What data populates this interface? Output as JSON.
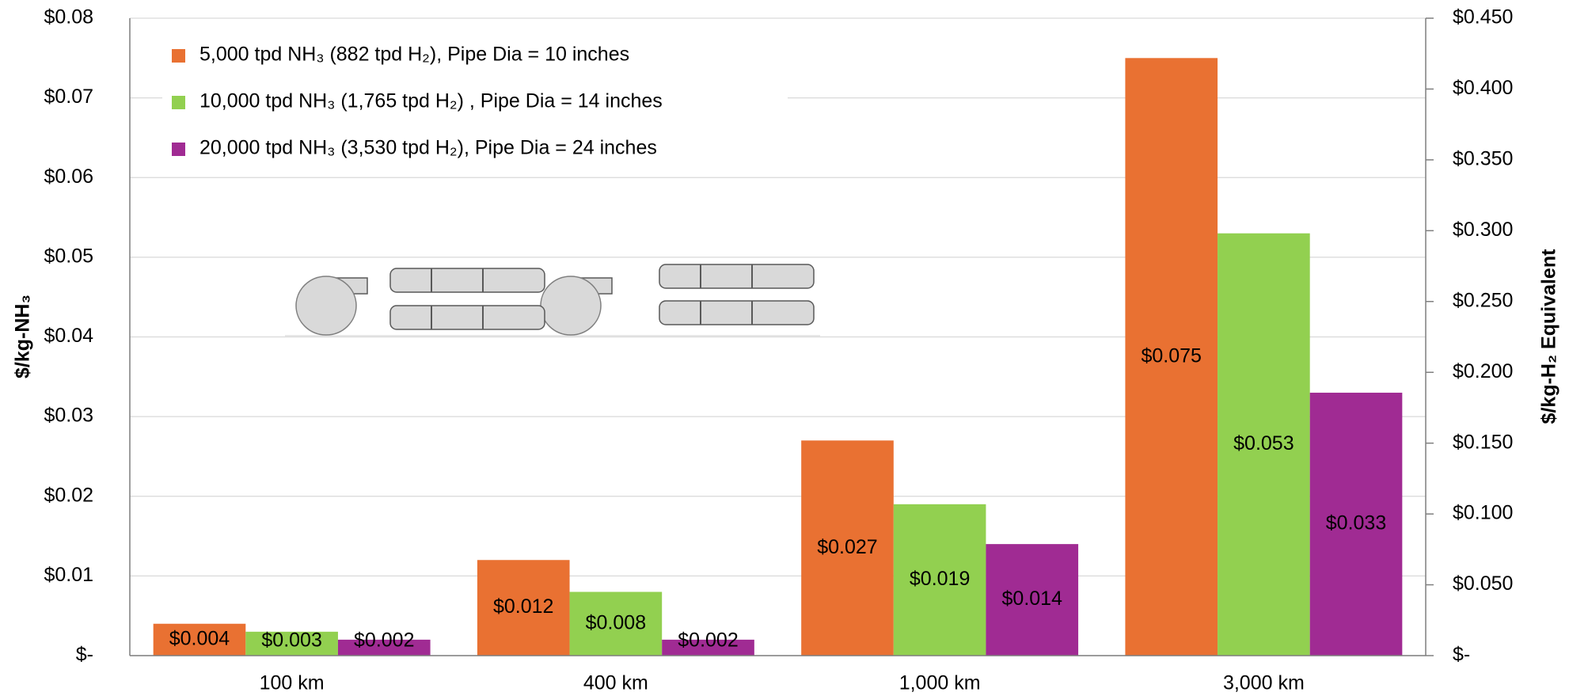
{
  "chart_data": {
    "type": "bar",
    "y_label": "$/kg-NH₃",
    "y2_label": "$/kg-H₂ Equivalent",
    "categories": [
      "100 km",
      "400 km",
      "1,000 km",
      "3,000 km"
    ],
    "series": [
      {
        "name": "5,000 tpd NH₃ (882 tpd H₂), Pipe Dia = 10 inches",
        "color": "#E97132",
        "values": [
          0.004,
          0.012,
          0.027,
          0.075
        ],
        "value_labels": [
          "$0.004",
          "$0.012",
          "$0.027",
          "$0.075"
        ]
      },
      {
        "name": "10,000 tpd NH₃ (1,765 tpd H₂) , Pipe Dia = 14 inches",
        "color": "#92D050",
        "values": [
          0.003,
          0.008,
          0.019,
          0.053
        ],
        "value_labels": [
          "$0.003",
          "$0.008",
          "$0.019",
          "$0.053"
        ]
      },
      {
        "name": "20,000 tpd NH₃ (3,530 tpd H₂), Pipe Dia = 24 inches",
        "color": "#A02B93",
        "values": [
          0.002,
          0.002,
          0.014,
          0.033
        ],
        "value_labels": [
          "$0.002",
          "$0.002",
          "$0.014",
          "$0.033"
        ]
      }
    ],
    "ylim": [
      0,
      0.08
    ],
    "yticks": [
      {
        "value": 0,
        "label": "$-"
      },
      {
        "value": 0.01,
        "label": "$0.01"
      },
      {
        "value": 0.02,
        "label": "$0.02"
      },
      {
        "value": 0.03,
        "label": "$0.03"
      },
      {
        "value": 0.04,
        "label": "$0.04"
      },
      {
        "value": 0.05,
        "label": "$0.05"
      },
      {
        "value": 0.06,
        "label": "$0.06"
      },
      {
        "value": 0.07,
        "label": "$0.07"
      },
      {
        "value": 0.08,
        "label": "$0.08"
      }
    ],
    "y2lim": [
      0,
      0.45
    ],
    "y2ticks": [
      {
        "value": 0,
        "label": "$-"
      },
      {
        "value": 0.05,
        "label": "$0.050"
      },
      {
        "value": 0.1,
        "label": "$0.100"
      },
      {
        "value": 0.15,
        "label": "$0.150"
      },
      {
        "value": 0.2,
        "label": "$0.200"
      },
      {
        "value": 0.25,
        "label": "$0.250"
      },
      {
        "value": 0.3,
        "label": "$0.300"
      },
      {
        "value": 0.35,
        "label": "$0.350"
      },
      {
        "value": 0.4,
        "label": "$0.400"
      },
      {
        "value": 0.45,
        "label": "$0.450"
      }
    ],
    "grid": true,
    "legend": "top-left"
  }
}
